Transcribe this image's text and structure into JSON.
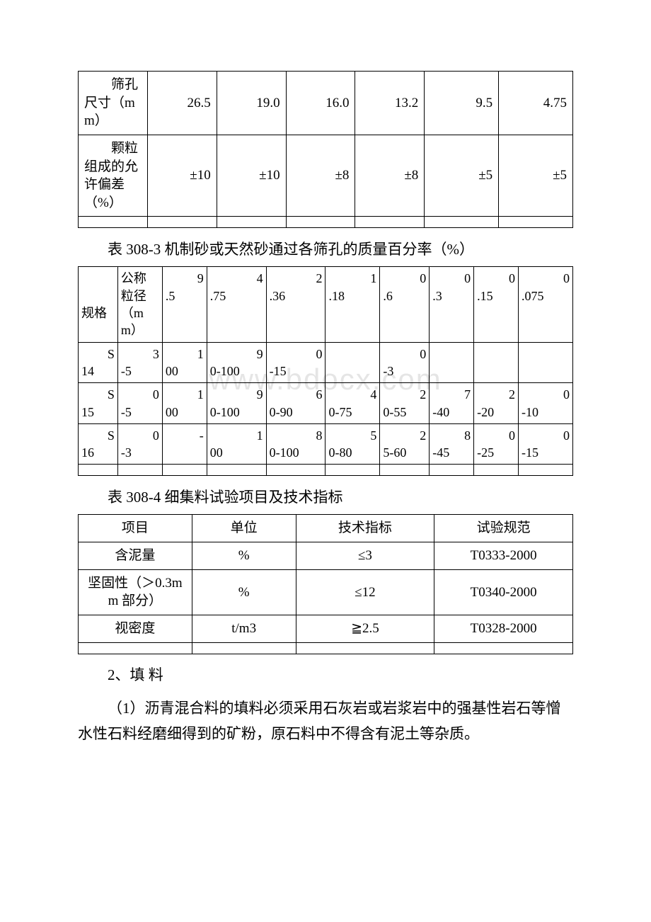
{
  "table1": {
    "row1_label": "筛孔尺寸（mm）",
    "row1": [
      "26.5",
      "19.0",
      "16.0",
      "13.2",
      "9.5",
      "4.75"
    ],
    "row2_label": "颗粒组成的允许偏差（%）",
    "row2": [
      "±10",
      "±10",
      "±8",
      "±8",
      "±5",
      "±5"
    ]
  },
  "caption2": "表 308-3 机制砂或天然砂通过各筛孔的质量百分率（%）",
  "table2": {
    "hdr_left_1": "规格",
    "hdr_left_2": "公称粒径（mm）",
    "hdr_cols": [
      "9.5",
      "4.75",
      "2.36",
      "1.18",
      "0.6",
      "0.3",
      "0.15",
      "0.075"
    ],
    "rows": [
      {
        "c0": "S14",
        "c1": "3-5",
        "v": [
          "100",
          "90-100",
          "0-15",
          "",
          "0-3",
          "",
          "",
          ""
        ]
      },
      {
        "c0": "S15",
        "c1": "0-5",
        "v": [
          "100",
          "90-100",
          "60-90",
          "40-75",
          "20-55",
          "7-40",
          "2-20",
          "0-10"
        ]
      },
      {
        "c0": "S16",
        "c1": "0-3",
        "v": [
          "-",
          "100",
          "80-100",
          "50-80",
          "25-60",
          "8-45",
          "0-25",
          "0-15"
        ]
      }
    ]
  },
  "caption3": "表 308-4 细集料试验项目及技术指标",
  "table3": {
    "hdr": [
      "项目",
      "单位",
      "技术指标",
      "试验规范"
    ],
    "rows": [
      [
        "含泥量",
        "%",
        "≤3",
        "T0333-2000"
      ],
      [
        "坚固性（＞0.3mm 部分）",
        "%",
        "≤12",
        "T0340-2000"
      ],
      [
        "视密度",
        "t/m3",
        "≧2.5",
        "T0328-2000"
      ]
    ]
  },
  "para1": "2、填 料",
  "para2": "（1）沥青混合料的填料必须采用石灰岩或岩浆岩中的强基性岩石等憎水性石料经磨细得到的矿粉，原石料中不得含有泥土等杂质。",
  "watermark": "www.bdocx.com"
}
